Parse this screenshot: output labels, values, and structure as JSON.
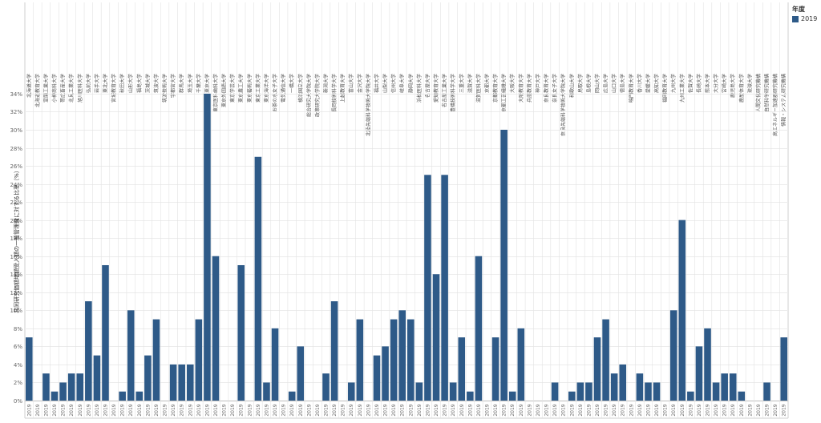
{
  "chart_data": {
    "type": "bar",
    "ylabel": "共同研究価額増額受入額の一般管理費に対する比率（%）",
    "y_ticks": [
      "0%",
      "2%",
      "4%",
      "6%",
      "8%",
      "10%",
      "12%",
      "14%",
      "16%",
      "18%",
      "20%",
      "22%",
      "24%",
      "26%",
      "28%",
      "30%",
      "32%",
      "34%"
    ],
    "ylim": [
      0,
      35.5
    ],
    "grid": true,
    "legend": {
      "title": "年度",
      "placement": "top-right",
      "entries": [
        "2019"
      ]
    },
    "series": [
      {
        "name": "2019",
        "color": "#2e5a88"
      }
    ],
    "x_sub_label": "2019",
    "categories": [
      "北海道大学",
      "北海道教育大学",
      "室蘭工業大学",
      "小樽商科大学",
      "帯広畜産大学",
      "北見工業大学",
      "旭川医科大学",
      "弘前大学",
      "岩手大学",
      "東北大学",
      "宮城教育大学",
      "秋田大学",
      "山形大学",
      "福島大学",
      "茨城大学",
      "筑波大学",
      "筑波技術大学",
      "宇都宮大学",
      "群馬大学",
      "埼玉大学",
      "千葉大学",
      "東京大学",
      "東京医科歯科大学",
      "東京外国語大学",
      "東京学芸大学",
      "東京農工大学",
      "東京藝術大学",
      "東京工業大学",
      "東京海洋大学",
      "お茶の水女子大学",
      "電気通信大学",
      "一橋大学",
      "横浜国立大学",
      "総合研究大学院大学",
      "政策研究大学院大学",
      "新潟大学",
      "長岡技術科学大学",
      "上越教育大学",
      "富山大学",
      "金沢大学",
      "北陸先端科学技術大学院大学",
      "福井大学",
      "山梨大学",
      "信州大学",
      "岐阜大学",
      "静岡大学",
      "浜松医科大学",
      "名古屋大学",
      "愛知教育大学",
      "名古屋工業大学",
      "豊橋技術科学大学",
      "三重大学",
      "滋賀大学",
      "滋賀医科大学",
      "京都大学",
      "京都教育大学",
      "京都工芸繊維大学",
      "大阪大学",
      "大阪教育大学",
      "兵庫教育大学",
      "神戸大学",
      "奈良教育大学",
      "奈良女子大学",
      "奈良先端科学技術大学院大学",
      "和歌山大学",
      "鳥取大学",
      "島根大学",
      "岡山大学",
      "広島大学",
      "山口大学",
      "徳島大学",
      "鳴門教育大学",
      "香川大学",
      "愛媛大学",
      "高知大学",
      "福岡教育大学",
      "九州大学",
      "九州工業大学",
      "佐賀大学",
      "長崎大学",
      "熊本大学",
      "大分大学",
      "宮崎大学",
      "鹿児島大学",
      "鹿屋体育大学",
      "琉球大学",
      "人間文化研究機構",
      "自然科学研究機構",
      "高エネルギー加速器研究機構",
      "情報・システム研究機構"
    ],
    "values": [
      7,
      0,
      3,
      1,
      2,
      3,
      3,
      11,
      5,
      15,
      0,
      1,
      10,
      1,
      5,
      9,
      0,
      4,
      4,
      4,
      9,
      34,
      16,
      0,
      0,
      15,
      0,
      27,
      2,
      8,
      0,
      1,
      6,
      0,
      0,
      3,
      11,
      0,
      2,
      9,
      0,
      5,
      6,
      9,
      10,
      9,
      2,
      25,
      14,
      25,
      2,
      7,
      1,
      16,
      0,
      7,
      30,
      1,
      8,
      0,
      0,
      0,
      2,
      0,
      1,
      2,
      2,
      7,
      9,
      3,
      4,
      0,
      3,
      2,
      2,
      0,
      10,
      20,
      1,
      6,
      8,
      2,
      3,
      3,
      1,
      0,
      0,
      2,
      0,
      7
    ]
  }
}
